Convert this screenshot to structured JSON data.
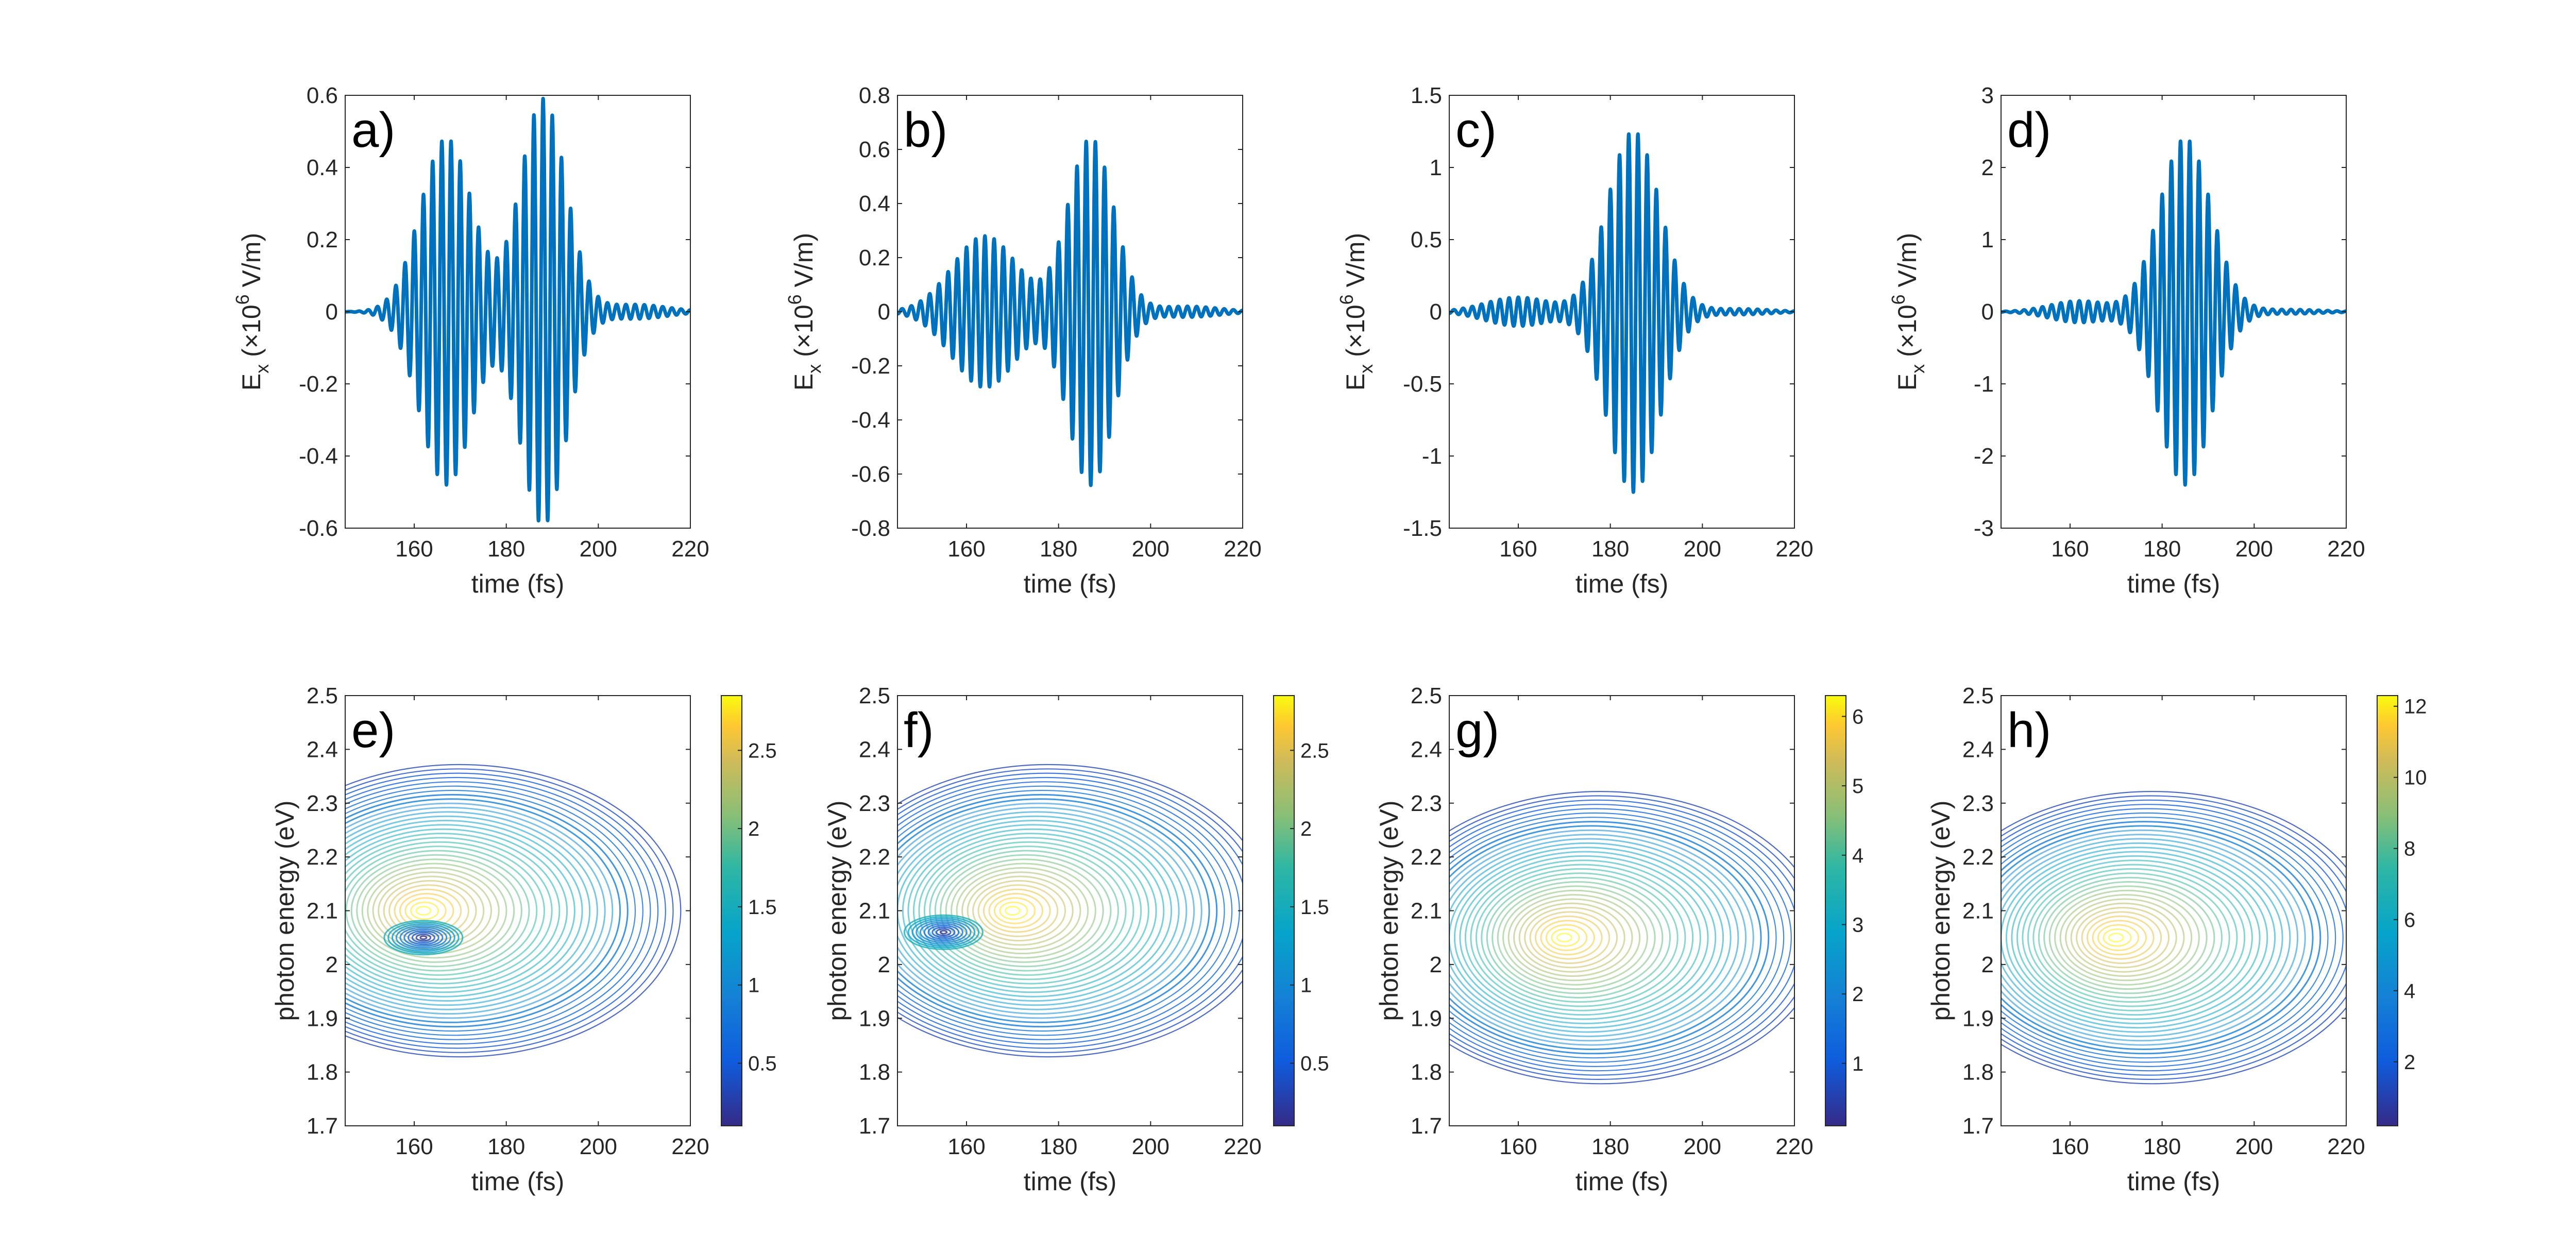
{
  "chart_data": [
    {
      "type": "line",
      "panel": "a)",
      "xlabel": "time (fs)",
      "ylabel_main": "E",
      "ylabel_sub": "x",
      "ylabel_prefix": " (×10",
      "ylabel_sup": "6",
      "ylabel_suffix": " V/m)",
      "xlim": [
        145,
        220
      ],
      "ylim": [
        -0.6,
        0.6
      ],
      "xticks": [
        160,
        180,
        200,
        220
      ],
      "yticks": [
        -0.6,
        -0.4,
        -0.2,
        0,
        0.2,
        0.4,
        0.6
      ],
      "yticklabels": [
        "-0.6",
        "-0.4",
        "-0.2",
        "0",
        "0.2",
        "0.4",
        "0.6"
      ],
      "grid": false,
      "color": "#0072BD",
      "envelope": [
        {
          "center": 167,
          "amp": 0.48,
          "width": 8
        },
        {
          "center": 188,
          "amp": 0.59,
          "width": 7
        },
        {
          "center": 208,
          "amp": 0.02,
          "width": 10
        }
      ]
    },
    {
      "type": "line",
      "panel": "b)",
      "xlabel": "time (fs)",
      "ylabel_main": "E",
      "ylabel_sub": "x",
      "ylabel_prefix": " (×10",
      "ylabel_sup": "6",
      "ylabel_suffix": " V/m)",
      "xlim": [
        145,
        220
      ],
      "ylim": [
        -0.8,
        0.8
      ],
      "xticks": [
        160,
        180,
        200,
        220
      ],
      "yticks": [
        -0.8,
        -0.6,
        -0.4,
        -0.2,
        0,
        0.2,
        0.4,
        0.6,
        0.8
      ],
      "yticklabels": [
        "-0.8",
        "-0.6",
        "-0.4",
        "-0.2",
        "0",
        "0.2",
        "0.4",
        "0.6",
        "0.8"
      ],
      "grid": false,
      "color": "#0072BD",
      "envelope": [
        {
          "center": 164,
          "amp": 0.28,
          "width": 10
        },
        {
          "center": 187,
          "amp": 0.64,
          "width": 7
        },
        {
          "center": 208,
          "amp": 0.02,
          "width": 10
        }
      ]
    },
    {
      "type": "line",
      "panel": "c)",
      "xlabel": "time (fs)",
      "ylabel_main": "E",
      "ylabel_sub": "x",
      "ylabel_prefix": " (×10",
      "ylabel_sup": "6",
      "ylabel_suffix": " V/m)",
      "xlim": [
        145,
        220
      ],
      "ylim": [
        -1.5,
        1.5
      ],
      "xticks": [
        160,
        180,
        200,
        220
      ],
      "yticks": [
        -1.5,
        -1,
        -0.5,
        0,
        0.5,
        1,
        1.5
      ],
      "yticklabels": [
        "-1.5",
        "-1",
        "-0.5",
        "0",
        "0.5",
        "1",
        "1.5"
      ],
      "grid": false,
      "color": "#0072BD",
      "envelope": [
        {
          "center": 160,
          "amp": 0.1,
          "width": 10
        },
        {
          "center": 185,
          "amp": 1.25,
          "width": 8
        },
        {
          "center": 208,
          "amp": 0.02,
          "width": 10
        }
      ]
    },
    {
      "type": "line",
      "panel": "d)",
      "xlabel": "time (fs)",
      "ylabel_main": "E",
      "ylabel_sub": "x",
      "ylabel_prefix": " (×10",
      "ylabel_sup": "6",
      "ylabel_suffix": " V/m)",
      "xlim": [
        145,
        220
      ],
      "ylim": [
        -3,
        3
      ],
      "xticks": [
        160,
        180,
        200,
        220
      ],
      "yticks": [
        -3,
        -2,
        -1,
        0,
        1,
        2,
        3
      ],
      "yticklabels": [
        "-3",
        "-2",
        "-1",
        "0",
        "1",
        "2",
        "3"
      ],
      "grid": false,
      "color": "#0072BD",
      "envelope": [
        {
          "center": 162,
          "amp": 0.15,
          "width": 9
        },
        {
          "center": 185,
          "amp": 2.4,
          "width": 8
        },
        {
          "center": 208,
          "amp": 0.03,
          "width": 10
        }
      ]
    },
    {
      "type": "heatmap",
      "panel": "e)",
      "xlabel": "time (fs)",
      "ylabel": "photon energy (eV)",
      "xlim": [
        145,
        220
      ],
      "ylim": [
        1.7,
        2.5
      ],
      "xticks": [
        160,
        180,
        200,
        220
      ],
      "yticks": [
        1.7,
        1.8,
        1.9,
        2.0,
        2.1,
        2.2,
        2.3,
        2.4,
        2.5
      ],
      "yticklabels": [
        "1.7",
        "1.8",
        "1.9",
        "2",
        "2.1",
        "2.2",
        "2.3",
        "2.4",
        "2.5"
      ],
      "colorbar": {
        "min": 0.1,
        "max": 2.85,
        "ticks": [
          0.5,
          1,
          1.5,
          2,
          2.5
        ],
        "ticklabels": [
          "0.5",
          "1",
          "1.5",
          "2",
          "2.5"
        ]
      },
      "peak": {
        "t": 162,
        "e": 2.1,
        "value": 2.85
      },
      "dip": {
        "t": 162,
        "e": 2.05,
        "value": 0.1
      }
    },
    {
      "type": "heatmap",
      "panel": "f)",
      "xlabel": "time (fs)",
      "ylabel": "photon energy (eV)",
      "xlim": [
        145,
        220
      ],
      "ylim": [
        1.7,
        2.5
      ],
      "xticks": [
        160,
        180,
        200,
        220
      ],
      "yticks": [
        1.7,
        1.8,
        1.9,
        2.0,
        2.1,
        2.2,
        2.3,
        2.4,
        2.5
      ],
      "yticklabels": [
        "1.7",
        "1.8",
        "1.9",
        "2",
        "2.1",
        "2.2",
        "2.3",
        "2.4",
        "2.5"
      ],
      "colorbar": {
        "min": 0.1,
        "max": 2.85,
        "ticks": [
          0.5,
          1,
          1.5,
          2,
          2.5
        ],
        "ticklabels": [
          "0.5",
          "1",
          "1.5",
          "2",
          "2.5"
        ]
      },
      "peak": {
        "t": 170,
        "e": 2.1,
        "value": 2.85
      },
      "dip": {
        "t": 155,
        "e": 2.06,
        "value": 0.1
      }
    },
    {
      "type": "heatmap",
      "panel": "g)",
      "xlabel": "time (fs)",
      "ylabel": "photon energy (eV)",
      "xlim": [
        145,
        220
      ],
      "ylim": [
        1.7,
        2.5
      ],
      "xticks": [
        160,
        180,
        200,
        220
      ],
      "yticks": [
        1.7,
        1.8,
        1.9,
        2.0,
        2.1,
        2.2,
        2.3,
        2.4,
        2.5
      ],
      "yticklabels": [
        "1.7",
        "1.8",
        "1.9",
        "2",
        "2.1",
        "2.2",
        "2.3",
        "2.4",
        "2.5"
      ],
      "colorbar": {
        "min": 0.1,
        "max": 6.3,
        "ticks": [
          1,
          2,
          3,
          4,
          5,
          6
        ],
        "ticklabels": [
          "1",
          "2",
          "3",
          "4",
          "5",
          "6"
        ]
      },
      "peak": {
        "t": 170,
        "e": 2.05,
        "value": 6.3
      }
    },
    {
      "type": "heatmap",
      "panel": "h)",
      "xlabel": "time (fs)",
      "ylabel": "photon energy (eV)",
      "xlim": [
        145,
        220
      ],
      "ylim": [
        1.7,
        2.5
      ],
      "xticks": [
        160,
        180,
        200,
        220
      ],
      "yticks": [
        1.7,
        1.8,
        1.9,
        2.0,
        2.1,
        2.2,
        2.3,
        2.4,
        2.5
      ],
      "yticklabels": [
        "1.7",
        "1.8",
        "1.9",
        "2",
        "2.1",
        "2.2",
        "2.3",
        "2.4",
        "2.5"
      ],
      "colorbar": {
        "min": 0.2,
        "max": 12.3,
        "ticks": [
          2,
          4,
          6,
          8,
          10,
          12
        ],
        "ticklabels": [
          "2",
          "4",
          "6",
          "8",
          "10",
          "12"
        ]
      },
      "peak": {
        "t": 170,
        "e": 2.05,
        "value": 12.3
      }
    }
  ]
}
